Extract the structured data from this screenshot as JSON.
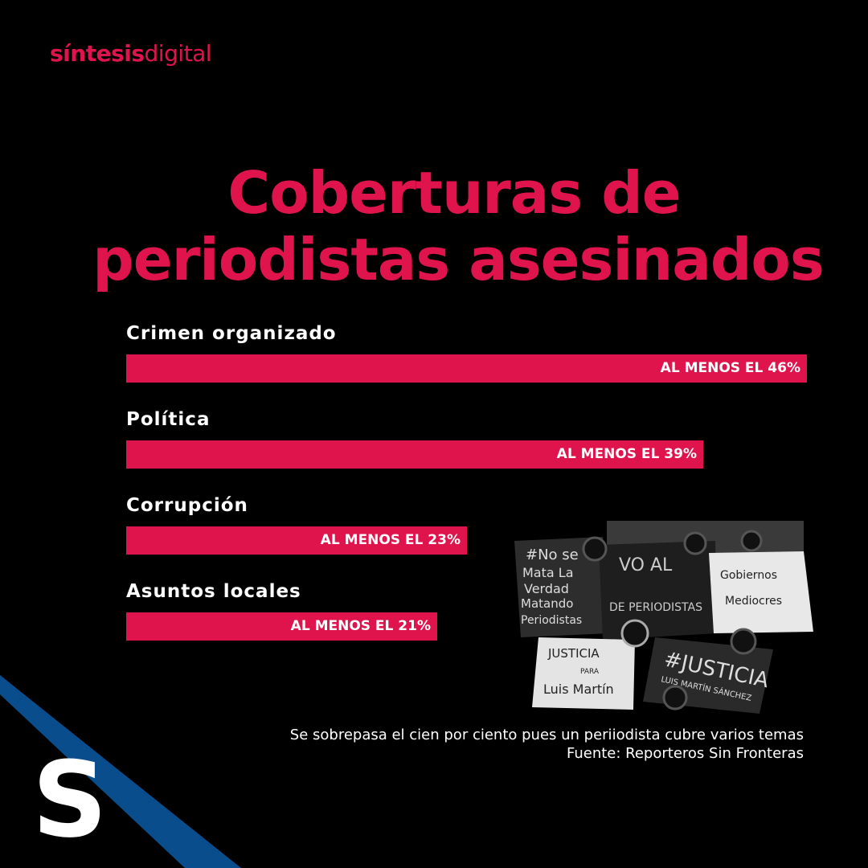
{
  "logo": {
    "bold": "síntesis",
    "light": "digital"
  },
  "title": {
    "line1": "Coberturas de",
    "line2": "periodistas asesinados"
  },
  "chart_data": {
    "type": "bar",
    "title": "Coberturas de periodistas asesinados",
    "categories": [
      "Crimen organizado",
      "Política",
      "Corrupción",
      "Asuntos locales"
    ],
    "values": [
      46,
      39,
      23,
      21
    ],
    "value_labels": [
      "AL MENOS EL 46%",
      "AL MENOS EL 39%",
      "AL MENOS EL 23%",
      "AL MENOS EL 21%"
    ],
    "orientation": "horizontal",
    "bar_color": "#e0144c",
    "grid": false,
    "legend": "none"
  },
  "photo": {
    "texts": [
      "#No se",
      "Mata La",
      "Verdad",
      "Matando",
      "Periodistas",
      "Gobiernos",
      "Mediocres",
      "JUSTICIA",
      "PARA",
      "Luis Martín",
      "#JUSTICIA",
      "LUIS MARTÍN SÁNCHEZ",
      "VO AL",
      "DE PERIODISTAS"
    ]
  },
  "footer": {
    "note": "Se sobrepasa el cien por ciento pues un periiodista cubre varios temas",
    "source": "Fuente: Reporteros Sin Fronteras"
  },
  "corner_logo": {
    "letter": "S",
    "color": "#0a4d8c"
  },
  "colors": {
    "accent": "#e0144c",
    "background": "#000000",
    "text": "#ffffff"
  }
}
